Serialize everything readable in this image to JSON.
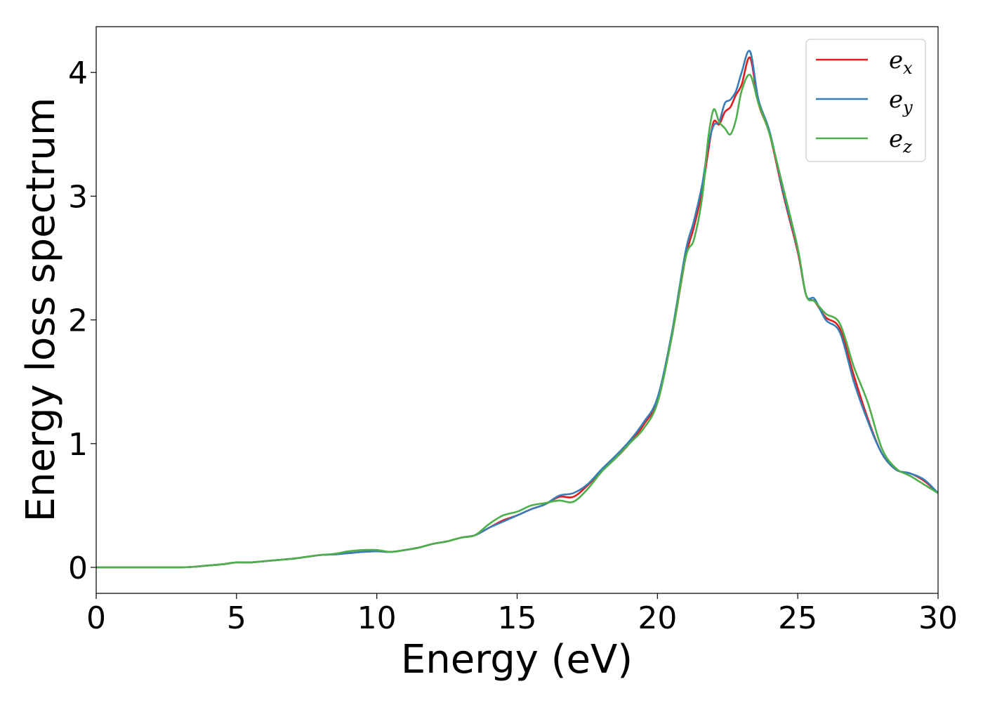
{
  "chart_data": {
    "type": "line",
    "title": "",
    "xlabel": "Energy (eV)",
    "ylabel": "Energy loss spectrum",
    "xlim": [
      0,
      30
    ],
    "ylim": [
      -0.21,
      4.37
    ],
    "xticks": [
      0,
      5,
      10,
      15,
      20,
      25,
      30
    ],
    "yticks": [
      0,
      1,
      2,
      3,
      4
    ],
    "grid": false,
    "legend_position": "top-right",
    "series": [
      {
        "name": "e_x",
        "legend_base": "e",
        "legend_sub": "x",
        "color": "#e41a1c",
        "x": [
          0,
          1,
          2,
          3,
          3.5,
          4,
          4.5,
          5,
          5.5,
          6,
          6.5,
          7,
          7.5,
          8,
          8.5,
          9,
          9.5,
          10,
          10.5,
          11,
          11.5,
          12,
          12.5,
          13,
          13.5,
          14,
          14.5,
          15,
          15.5,
          16,
          16.5,
          17,
          17.5,
          18,
          18.5,
          19,
          19.5,
          20,
          20.5,
          21,
          21.3,
          21.6,
          21.8,
          22,
          22.2,
          22.4,
          22.6,
          22.8,
          23,
          23.3,
          23.6,
          24,
          24.5,
          25,
          25.3,
          25.6,
          26,
          26.5,
          27,
          27.5,
          28,
          28.5,
          29,
          29.5,
          30
        ],
        "y": [
          0,
          0,
          0,
          0,
          0.005,
          0.015,
          0.025,
          0.04,
          0.04,
          0.05,
          0.06,
          0.07,
          0.085,
          0.1,
          0.105,
          0.115,
          0.125,
          0.13,
          0.125,
          0.14,
          0.16,
          0.19,
          0.21,
          0.24,
          0.26,
          0.32,
          0.38,
          0.42,
          0.47,
          0.51,
          0.57,
          0.57,
          0.66,
          0.78,
          0.88,
          1.0,
          1.15,
          1.35,
          1.85,
          2.5,
          2.75,
          3.05,
          3.35,
          3.6,
          3.58,
          3.68,
          3.72,
          3.82,
          3.9,
          4.12,
          3.75,
          3.5,
          3.0,
          2.55,
          2.2,
          2.15,
          2.02,
          1.93,
          1.55,
          1.2,
          0.92,
          0.79,
          0.76,
          0.7,
          0.6
        ]
      },
      {
        "name": "e_y",
        "legend_base": "e",
        "legend_sub": "y",
        "color": "#377eb8",
        "x": [
          0,
          1,
          2,
          3,
          3.5,
          4,
          4.5,
          5,
          5.5,
          6,
          6.5,
          7,
          7.5,
          8,
          8.5,
          9,
          9.5,
          10,
          10.5,
          11,
          11.5,
          12,
          12.5,
          13,
          13.5,
          14,
          14.5,
          15,
          15.5,
          16,
          16.5,
          17,
          17.5,
          18,
          18.5,
          19,
          19.5,
          20,
          20.5,
          21,
          21.3,
          21.6,
          21.8,
          22,
          22.2,
          22.4,
          22.6,
          22.8,
          23,
          23.3,
          23.6,
          24,
          24.5,
          25,
          25.3,
          25.6,
          26,
          26.5,
          27,
          27.5,
          28,
          28.5,
          29,
          29.5,
          30
        ],
        "y": [
          0,
          0,
          0,
          0,
          0.005,
          0.015,
          0.025,
          0.04,
          0.04,
          0.05,
          0.06,
          0.07,
          0.085,
          0.1,
          0.105,
          0.115,
          0.125,
          0.13,
          0.125,
          0.14,
          0.16,
          0.19,
          0.21,
          0.24,
          0.26,
          0.32,
          0.37,
          0.42,
          0.47,
          0.51,
          0.58,
          0.6,
          0.67,
          0.79,
          0.9,
          1.02,
          1.17,
          1.37,
          1.88,
          2.55,
          2.8,
          3.1,
          3.4,
          3.57,
          3.6,
          3.75,
          3.78,
          3.85,
          4.0,
          4.17,
          3.78,
          3.52,
          3.02,
          2.57,
          2.2,
          2.17,
          2.0,
          1.9,
          1.5,
          1.18,
          0.92,
          0.79,
          0.76,
          0.71,
          0.6
        ]
      },
      {
        "name": "e_z",
        "legend_base": "e",
        "legend_sub": "z",
        "color": "#4daf4a",
        "x": [
          0,
          1,
          2,
          3,
          3.5,
          4,
          4.5,
          5,
          5.5,
          6,
          6.5,
          7,
          7.5,
          8,
          8.5,
          9,
          9.5,
          10,
          10.5,
          11,
          11.5,
          12,
          12.5,
          13,
          13.5,
          14,
          14.5,
          15,
          15.5,
          16,
          16.5,
          17,
          17.5,
          18,
          18.5,
          19,
          19.5,
          20,
          20.5,
          21,
          21.3,
          21.6,
          21.8,
          22,
          22.2,
          22.4,
          22.6,
          22.8,
          23,
          23.3,
          23.6,
          24,
          24.5,
          25,
          25.3,
          25.6,
          26,
          26.5,
          27,
          27.5,
          28,
          28.5,
          29,
          29.5,
          30
        ],
        "y": [
          0,
          0,
          0,
          0,
          0.005,
          0.015,
          0.025,
          0.04,
          0.04,
          0.05,
          0.06,
          0.07,
          0.085,
          0.1,
          0.11,
          0.13,
          0.14,
          0.14,
          0.125,
          0.14,
          0.16,
          0.19,
          0.21,
          0.24,
          0.26,
          0.35,
          0.42,
          0.45,
          0.5,
          0.52,
          0.54,
          0.53,
          0.63,
          0.77,
          0.88,
          1.0,
          1.12,
          1.33,
          1.85,
          2.5,
          2.65,
          3.0,
          3.45,
          3.7,
          3.6,
          3.55,
          3.5,
          3.62,
          3.85,
          3.98,
          3.75,
          3.5,
          3.05,
          2.58,
          2.2,
          2.15,
          2.05,
          1.97,
          1.62,
          1.33,
          0.96,
          0.8,
          0.74,
          0.67,
          0.6
        ]
      }
    ]
  }
}
